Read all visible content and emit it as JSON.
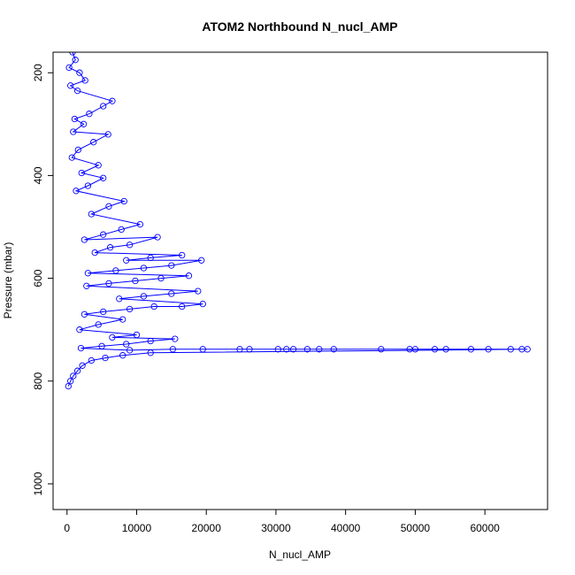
{
  "chart_data": {
    "type": "scatter",
    "title": "ATOM2 Northbound N_nucl_AMP",
    "xlabel": "N_nucl_AMP",
    "ylabel": "Pressure (mbar)",
    "xlim": [
      -2000,
      69000
    ],
    "ylim": [
      1050,
      160
    ],
    "y_axis_inverted": true,
    "xticks": [
      0,
      10000,
      20000,
      30000,
      40000,
      50000,
      60000
    ],
    "xtick_labels": [
      "0",
      "10000",
      "20000",
      "30000",
      "40000",
      "50000",
      "60000"
    ],
    "yticks": [
      200,
      400,
      600,
      800,
      1000
    ],
    "ytick_labels": [
      "200",
      "400",
      "600",
      "800",
      "1000"
    ],
    "grid": false,
    "legend": "none",
    "marker": "open-circle",
    "line": "connected",
    "color": "#0000ff",
    "series": [
      {
        "points": [
          [
            800,
            160
          ],
          [
            1200,
            175
          ],
          [
            300,
            190
          ],
          [
            1800,
            200
          ],
          [
            2600,
            215
          ],
          [
            500,
            225
          ],
          [
            1500,
            235
          ],
          [
            6500,
            255
          ],
          [
            5200,
            265
          ],
          [
            3200,
            280
          ],
          [
            1100,
            290
          ],
          [
            2400,
            300
          ],
          [
            900,
            315
          ],
          [
            5900,
            320
          ],
          [
            3800,
            335
          ],
          [
            1600,
            350
          ],
          [
            700,
            365
          ],
          [
            4500,
            380
          ],
          [
            2100,
            395
          ],
          [
            5200,
            405
          ],
          [
            3000,
            420
          ],
          [
            1300,
            430
          ],
          [
            8200,
            450
          ],
          [
            6000,
            460
          ],
          [
            3500,
            475
          ],
          [
            10500,
            495
          ],
          [
            7800,
            505
          ],
          [
            5200,
            515
          ],
          [
            2500,
            525
          ],
          [
            13000,
            520
          ],
          [
            9000,
            535
          ],
          [
            6200,
            540
          ],
          [
            4000,
            550
          ],
          [
            16500,
            555
          ],
          [
            12000,
            560
          ],
          [
            8500,
            565
          ],
          [
            19300,
            565
          ],
          [
            15000,
            575
          ],
          [
            11000,
            580
          ],
          [
            7000,
            585
          ],
          [
            3000,
            590
          ],
          [
            17500,
            595
          ],
          [
            13500,
            600
          ],
          [
            9800,
            605
          ],
          [
            6000,
            610
          ],
          [
            2800,
            615
          ],
          [
            18800,
            625
          ],
          [
            15000,
            630
          ],
          [
            11000,
            635
          ],
          [
            7500,
            640
          ],
          [
            19500,
            650
          ],
          [
            16500,
            655
          ],
          [
            12500,
            655
          ],
          [
            9000,
            660
          ],
          [
            5200,
            665
          ],
          [
            2500,
            670
          ],
          [
            8000,
            680
          ],
          [
            4500,
            690
          ],
          [
            1800,
            700
          ],
          [
            10000,
            710
          ],
          [
            6500,
            715
          ],
          [
            15500,
            718
          ],
          [
            12000,
            722
          ],
          [
            8500,
            728
          ],
          [
            5000,
            732
          ],
          [
            2000,
            736
          ],
          [
            9000,
            740
          ],
          [
            15200,
            738
          ],
          [
            19500,
            738
          ],
          [
            24800,
            738
          ],
          [
            26200,
            738
          ],
          [
            30300,
            738
          ],
          [
            31500,
            738
          ],
          [
            32500,
            738
          ],
          [
            34500,
            738
          ],
          [
            36200,
            738
          ],
          [
            38300,
            738
          ],
          [
            45100,
            738
          ],
          [
            49200,
            738
          ],
          [
            50000,
            738
          ],
          [
            52800,
            738
          ],
          [
            54400,
            738
          ],
          [
            58000,
            738
          ],
          [
            60500,
            738
          ],
          [
            63700,
            738
          ],
          [
            65300,
            738
          ],
          [
            66100,
            738
          ],
          [
            12000,
            745
          ],
          [
            8000,
            750
          ],
          [
            5500,
            755
          ],
          [
            3500,
            760
          ],
          [
            2200,
            770
          ],
          [
            1500,
            780
          ],
          [
            900,
            790
          ],
          [
            500,
            800
          ],
          [
            200,
            810
          ]
        ]
      }
    ]
  }
}
